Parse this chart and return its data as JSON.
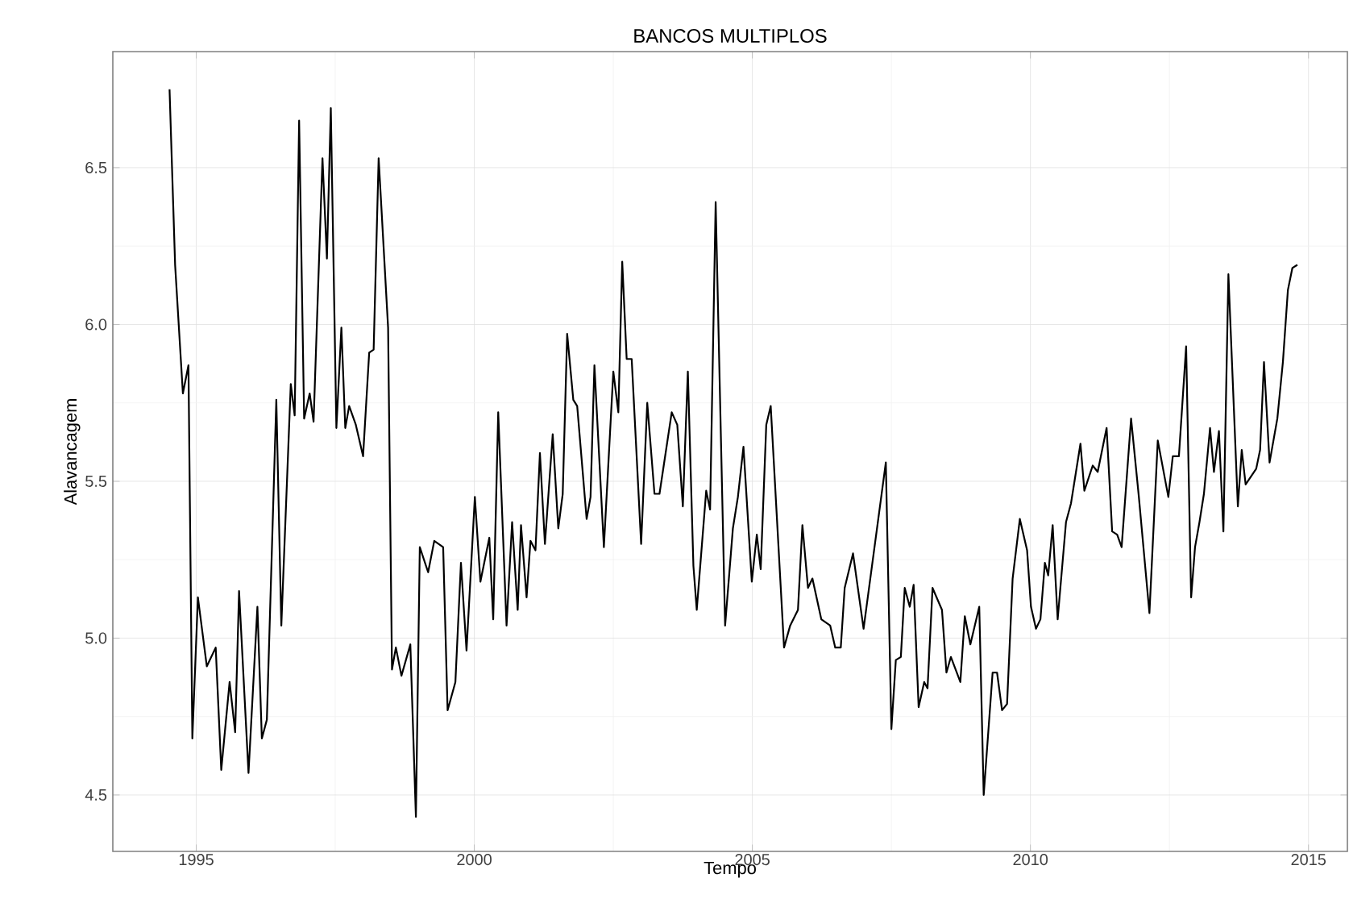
{
  "chart_data": {
    "type": "line",
    "title": "BANCOS MULTIPLOS",
    "xlabel": "Tempo",
    "ylabel": "Alavancagem",
    "xlim": [
      1993.5,
      2015.7
    ],
    "ylim": [
      4.32,
      6.87
    ],
    "xticks": [
      1995,
      2000,
      2005,
      2010,
      2015
    ],
    "yticks": [
      4.5,
      {
        "value": 5,
        "label": "5.0"
      },
      5.5,
      {
        "value": 6,
        "label": "6.0"
      },
      6.5
    ],
    "grid": true,
    "line_style": "solid",
    "series": [
      {
        "color": "#000000",
        "x": [
          1994.52,
          1994.62,
          1994.76,
          1994.86,
          1994.93,
          1995.03,
          1995.19,
          1995.35,
          1995.45,
          1995.6,
          1995.7,
          1995.77,
          1995.94,
          1996.1,
          1996.18,
          1996.27,
          1996.44,
          1996.53,
          1996.7,
          1996.77,
          1996.85,
          1996.94,
          1997.04,
          1997.11,
          1997.27,
          1997.35,
          1997.42,
          1997.52,
          1997.61,
          1997.68,
          1997.75,
          1997.87,
          1998.0,
          1998.11,
          1998.19,
          1998.28,
          1998.45,
          1998.52,
          1998.59,
          1998.69,
          1998.85,
          1998.95,
          1999.02,
          1999.17,
          1999.28,
          1999.44,
          1999.52,
          1999.66,
          1999.76,
          1999.86,
          2000.01,
          2000.11,
          2000.27,
          2000.34,
          2000.43,
          2000.58,
          2000.68,
          2000.78,
          2000.84,
          2000.94,
          2001.01,
          2001.1,
          2001.18,
          2001.27,
          2001.41,
          2001.51,
          2001.59,
          2001.67,
          2001.78,
          2001.85,
          2002.02,
          2002.09,
          2002.16,
          2002.33,
          2002.5,
          2002.59,
          2002.66,
          2002.74,
          2002.83,
          2003.0,
          2003.11,
          2003.24,
          2003.33,
          2003.55,
          2003.65,
          2003.75,
          2003.84,
          2003.94,
          2004.0,
          2004.17,
          2004.24,
          2004.34,
          2004.51,
          2004.65,
          2004.74,
          2004.84,
          2004.99,
          2005.08,
          2005.15,
          2005.25,
          2005.33,
          2005.57,
          2005.68,
          2005.82,
          2005.9,
          2006.0,
          2006.08,
          2006.24,
          2006.4,
          2006.49,
          2006.59,
          2006.66,
          2006.81,
          2007.0,
          2007.4,
          2007.5,
          2007.58,
          2007.67,
          2007.74,
          2007.83,
          2007.9,
          2007.99,
          2008.09,
          2008.15,
          2008.24,
          2008.41,
          2008.49,
          2008.57,
          2008.74,
          2008.82,
          2008.92,
          2009.08,
          2009.16,
          2009.32,
          2009.4,
          2009.49,
          2009.58,
          2009.68,
          2009.81,
          2009.94,
          2010.01,
          2010.1,
          2010.18,
          2010.26,
          2010.32,
          2010.4,
          2010.49,
          2010.64,
          2010.73,
          2010.9,
          2010.97,
          2011.12,
          2011.21,
          2011.37,
          2011.47,
          2011.56,
          2011.64,
          2011.81,
          2011.95,
          2012.14,
          2012.29,
          2012.48,
          2012.56,
          2012.67,
          2012.8,
          2012.89,
          2012.96,
          2013.04,
          2013.12,
          2013.23,
          2013.3,
          2013.39,
          2013.47,
          2013.56,
          2013.73,
          2013.8,
          2013.87,
          2014.06,
          2014.13,
          2014.2,
          2014.3,
          2014.44,
          2014.54,
          2014.63,
          2014.71,
          2014.8
        ],
        "values": [
          6.75,
          6.19,
          5.78,
          5.87,
          4.68,
          5.13,
          4.91,
          4.97,
          4.58,
          4.86,
          4.7,
          5.15,
          4.57,
          5.1,
          4.68,
          4.74,
          5.76,
          5.04,
          5.81,
          5.71,
          6.65,
          5.7,
          5.78,
          5.69,
          6.53,
          6.21,
          6.69,
          5.67,
          5.99,
          5.67,
          5.74,
          5.68,
          5.58,
          5.91,
          5.92,
          6.53,
          5.99,
          4.9,
          4.97,
          4.88,
          4.98,
          4.43,
          5.29,
          5.21,
          5.31,
          5.29,
          4.77,
          4.86,
          5.24,
          4.96,
          5.45,
          5.18,
          5.32,
          5.06,
          5.72,
          5.04,
          5.37,
          5.09,
          5.36,
          5.13,
          5.31,
          5.28,
          5.59,
          5.3,
          5.65,
          5.35,
          5.46,
          5.97,
          5.76,
          5.74,
          5.38,
          5.45,
          5.87,
          5.29,
          5.85,
          5.72,
          6.2,
          5.89,
          5.89,
          5.3,
          5.75,
          5.46,
          5.46,
          5.72,
          5.68,
          5.42,
          5.85,
          5.23,
          5.09,
          5.47,
          5.41,
          6.39,
          5.04,
          5.35,
          5.45,
          5.61,
          5.18,
          5.33,
          5.22,
          5.68,
          5.74,
          4.97,
          5.04,
          5.09,
          5.36,
          5.16,
          5.19,
          5.06,
          5.04,
          4.97,
          4.97,
          5.16,
          5.27,
          5.03,
          5.56,
          4.71,
          4.93,
          4.94,
          5.16,
          5.1,
          5.17,
          4.78,
          4.86,
          4.84,
          5.16,
          5.09,
          4.89,
          4.94,
          4.86,
          5.07,
          4.98,
          5.1,
          4.5,
          4.89,
          4.89,
          4.77,
          4.79,
          5.19,
          5.38,
          5.28,
          5.1,
          5.03,
          5.06,
          5.24,
          5.2,
          5.36,
          5.06,
          5.37,
          5.43,
          5.62,
          5.47,
          5.55,
          5.53,
          5.67,
          5.34,
          5.33,
          5.29,
          5.7,
          5.45,
          5.08,
          5.63,
          5.45,
          5.58,
          5.58,
          5.93,
          5.13,
          5.29,
          5.37,
          5.46,
          5.67,
          5.53,
          5.66,
          5.34,
          6.16,
          5.42,
          5.6,
          5.49,
          5.54,
          5.6,
          5.88,
          5.56,
          5.7,
          5.88,
          6.11,
          6.18,
          6.19
        ]
      }
    ]
  }
}
